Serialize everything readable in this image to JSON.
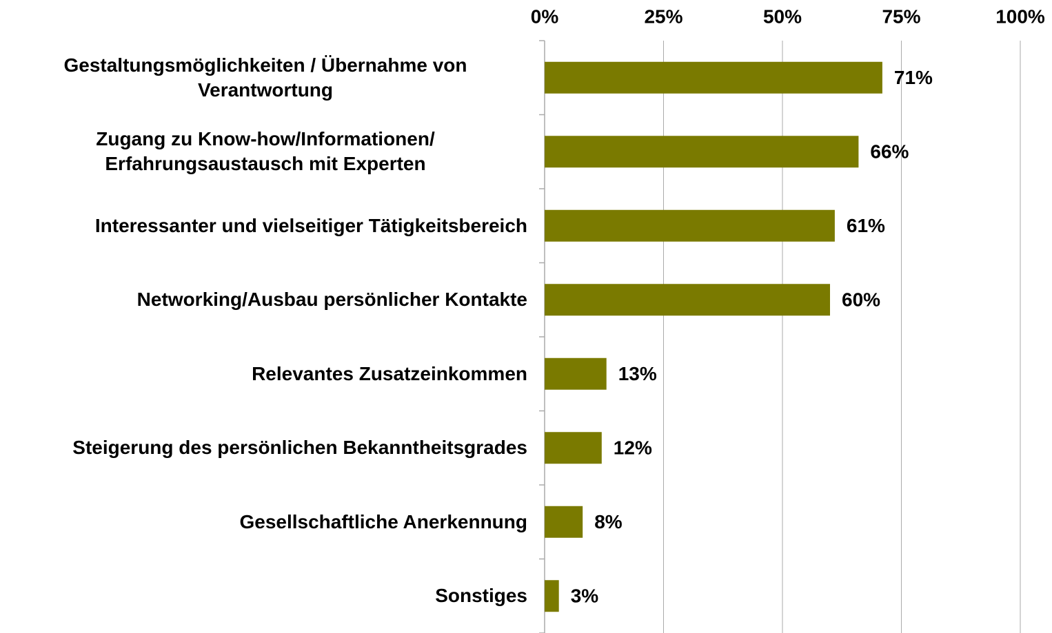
{
  "chart_data": {
    "type": "hbar",
    "categories": [
      "Gestaltungsmöglichkeiten / Übernahme von Verantwortung",
      "Zugang zu Know-how/Informationen/ Erfahrungsaustausch mit Experten",
      "Interessanter und vielseitiger Tätigkeitsbereich",
      "Networking/Ausbau persönlicher Kontakte",
      "Relevantes Zusatzeinkommen",
      "Steigerung des persönlichen Bekanntheitsgrades",
      "Gesellschaftliche Anerkennung",
      "Sonstiges"
    ],
    "values": [
      71,
      66,
      61,
      60,
      13,
      12,
      8,
      3
    ],
    "value_labels": [
      "71%",
      "66%",
      "61%",
      "60%",
      "13%",
      "12%",
      "8%",
      "3%"
    ],
    "color": "#7a7a00",
    "xlim": [
      0,
      100
    ],
    "xticks": [
      {
        "value": 0,
        "label": "0%"
      },
      {
        "value": 25,
        "label": "25%"
      },
      {
        "value": 50,
        "label": "50%"
      },
      {
        "value": 75,
        "label": "75%"
      },
      {
        "value": 100,
        "label": "100%"
      }
    ],
    "grid": true
  }
}
